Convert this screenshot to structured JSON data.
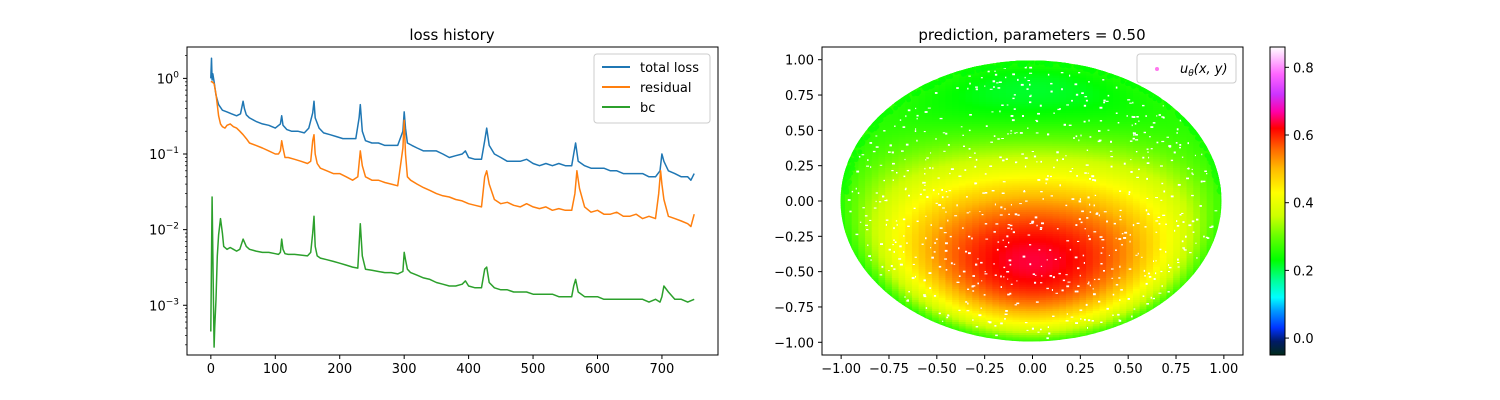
{
  "chart_data": [
    {
      "type": "line",
      "title": "loss history",
      "xlabel": "",
      "ylabel": "",
      "yscale": "log",
      "xlim": [
        -37,
        787
      ],
      "ylim": [
        0.00022,
        2.6
      ],
      "x_ticks": [
        0,
        100,
        200,
        300,
        400,
        500,
        600,
        700
      ],
      "y_ticks": [
        0.001,
        0.01,
        0.1,
        1
      ],
      "y_tick_labels": [
        {
          "base": "10",
          "exp": "−3"
        },
        {
          "base": "10",
          "exp": "−2"
        },
        {
          "base": "10",
          "exp": "−1"
        },
        {
          "base": "10",
          "exp": "0"
        }
      ],
      "legend_position": "top-right",
      "grid": false,
      "series": [
        {
          "name": "total loss",
          "color": "#1f77b4",
          "x": [
            0,
            1,
            2,
            3,
            5,
            8,
            12,
            18,
            25,
            32,
            40,
            46,
            50,
            52,
            55,
            60,
            70,
            80,
            90,
            100,
            108,
            110,
            112,
            118,
            125,
            135,
            145,
            152,
            158,
            160,
            162,
            168,
            175,
            185,
            195,
            205,
            215,
            225,
            230,
            232,
            235,
            240,
            250,
            260,
            270,
            280,
            290,
            298,
            300,
            302,
            305,
            312,
            320,
            330,
            340,
            350,
            360,
            370,
            380,
            390,
            395,
            400,
            410,
            420,
            425,
            428,
            432,
            440,
            450,
            460,
            470,
            480,
            490,
            500,
            510,
            520,
            530,
            540,
            550,
            560,
            563,
            566,
            570,
            580,
            590,
            600,
            610,
            620,
            630,
            640,
            650,
            660,
            670,
            680,
            690,
            697,
            700,
            703,
            710,
            720,
            730,
            740,
            745,
            750
          ],
          "y": [
            1.0,
            1.85,
            0.95,
            1.15,
            0.9,
            0.6,
            0.45,
            0.38,
            0.36,
            0.34,
            0.32,
            0.34,
            0.5,
            0.4,
            0.33,
            0.3,
            0.27,
            0.25,
            0.24,
            0.22,
            0.25,
            0.32,
            0.24,
            0.21,
            0.2,
            0.2,
            0.19,
            0.22,
            0.35,
            0.5,
            0.3,
            0.22,
            0.19,
            0.18,
            0.17,
            0.16,
            0.16,
            0.16,
            0.3,
            0.45,
            0.2,
            0.15,
            0.14,
            0.14,
            0.13,
            0.13,
            0.13,
            0.2,
            0.36,
            0.22,
            0.14,
            0.13,
            0.12,
            0.11,
            0.11,
            0.11,
            0.1,
            0.09,
            0.095,
            0.1,
            0.11,
            0.09,
            0.085,
            0.085,
            0.15,
            0.22,
            0.13,
            0.1,
            0.09,
            0.08,
            0.08,
            0.08,
            0.085,
            0.075,
            0.07,
            0.075,
            0.07,
            0.075,
            0.07,
            0.07,
            0.1,
            0.14,
            0.08,
            0.07,
            0.065,
            0.065,
            0.065,
            0.06,
            0.06,
            0.055,
            0.055,
            0.055,
            0.055,
            0.05,
            0.05,
            0.06,
            0.1,
            0.08,
            0.06,
            0.055,
            0.05,
            0.05,
            0.045,
            0.055
          ]
        },
        {
          "name": "residual",
          "color": "#ff7f0e",
          "x": [
            0,
            2,
            5,
            8,
            12,
            15,
            18,
            22,
            25,
            30,
            35,
            40,
            45,
            50,
            55,
            60,
            70,
            80,
            90,
            100,
            105,
            108,
            110,
            112,
            115,
            120,
            130,
            140,
            150,
            155,
            158,
            160,
            162,
            165,
            170,
            180,
            190,
            200,
            210,
            220,
            228,
            232,
            235,
            240,
            250,
            260,
            270,
            280,
            290,
            298,
            300,
            302,
            305,
            310,
            320,
            330,
            340,
            350,
            360,
            370,
            380,
            390,
            400,
            410,
            420,
            425,
            428,
            432,
            440,
            450,
            460,
            470,
            480,
            490,
            500,
            510,
            520,
            530,
            540,
            550,
            560,
            565,
            568,
            572,
            580,
            590,
            600,
            610,
            620,
            630,
            640,
            650,
            660,
            670,
            680,
            690,
            695,
            698,
            700,
            703,
            710,
            720,
            730,
            740,
            745,
            750
          ],
          "y": [
            0.9,
            0.9,
            0.85,
            0.62,
            0.32,
            0.25,
            0.23,
            0.22,
            0.24,
            0.25,
            0.23,
            0.22,
            0.2,
            0.18,
            0.16,
            0.14,
            0.13,
            0.12,
            0.11,
            0.1,
            0.1,
            0.11,
            0.15,
            0.12,
            0.09,
            0.09,
            0.085,
            0.08,
            0.075,
            0.08,
            0.15,
            0.18,
            0.1,
            0.075,
            0.065,
            0.06,
            0.055,
            0.055,
            0.05,
            0.045,
            0.05,
            0.11,
            0.07,
            0.05,
            0.045,
            0.045,
            0.042,
            0.04,
            0.038,
            0.12,
            0.28,
            0.1,
            0.05,
            0.045,
            0.04,
            0.036,
            0.033,
            0.03,
            0.028,
            0.027,
            0.025,
            0.024,
            0.022,
            0.021,
            0.02,
            0.05,
            0.06,
            0.04,
            0.025,
            0.022,
            0.023,
            0.021,
            0.02,
            0.022,
            0.02,
            0.019,
            0.02,
            0.018,
            0.019,
            0.018,
            0.018,
            0.03,
            0.06,
            0.035,
            0.02,
            0.017,
            0.018,
            0.016,
            0.016,
            0.017,
            0.015,
            0.015,
            0.016,
            0.014,
            0.015,
            0.014,
            0.03,
            0.06,
            0.04,
            0.025,
            0.015,
            0.014,
            0.013,
            0.012,
            0.011,
            0.016
          ]
        },
        {
          "name": "bc",
          "color": "#2ca02c",
          "x": [
            0,
            2,
            4,
            5,
            6,
            8,
            10,
            12,
            15,
            18,
            20,
            25,
            30,
            35,
            40,
            45,
            50,
            55,
            60,
            70,
            80,
            90,
            100,
            105,
            108,
            110,
            112,
            115,
            120,
            130,
            140,
            150,
            155,
            158,
            160,
            162,
            165,
            170,
            180,
            190,
            200,
            210,
            220,
            228,
            232,
            235,
            240,
            250,
            260,
            270,
            280,
            290,
            298,
            300,
            302,
            305,
            310,
            320,
            330,
            340,
            350,
            360,
            370,
            380,
            390,
            395,
            400,
            410,
            420,
            425,
            428,
            432,
            440,
            450,
            460,
            470,
            480,
            490,
            500,
            510,
            520,
            530,
            540,
            550,
            560,
            563,
            566,
            570,
            580,
            590,
            600,
            610,
            620,
            630,
            640,
            650,
            660,
            670,
            680,
            690,
            697,
            700,
            703,
            710,
            720,
            730,
            740,
            750
          ],
          "y": [
            0.00045,
            0.027,
            0.0013,
            0.00028,
            0.0005,
            0.0012,
            0.0045,
            0.0085,
            0.014,
            0.009,
            0.006,
            0.0055,
            0.0058,
            0.0055,
            0.0052,
            0.0055,
            0.0075,
            0.006,
            0.0055,
            0.0052,
            0.005,
            0.005,
            0.0048,
            0.0047,
            0.005,
            0.0075,
            0.0055,
            0.0048,
            0.0047,
            0.0047,
            0.0046,
            0.0045,
            0.005,
            0.009,
            0.015,
            0.006,
            0.0045,
            0.0042,
            0.004,
            0.0038,
            0.0036,
            0.0034,
            0.0032,
            0.0031,
            0.012,
            0.0045,
            0.003,
            0.0029,
            0.0028,
            0.0027,
            0.0027,
            0.0026,
            0.0028,
            0.005,
            0.004,
            0.003,
            0.0027,
            0.0025,
            0.0023,
            0.0022,
            0.002,
            0.0019,
            0.0018,
            0.0018,
            0.0019,
            0.0021,
            0.0018,
            0.0017,
            0.0017,
            0.003,
            0.0032,
            0.002,
            0.0017,
            0.0016,
            0.0016,
            0.0015,
            0.0015,
            0.0015,
            0.0014,
            0.0014,
            0.0014,
            0.0014,
            0.0013,
            0.0013,
            0.0013,
            0.0018,
            0.0022,
            0.0015,
            0.0013,
            0.0013,
            0.0013,
            0.0012,
            0.0012,
            0.0012,
            0.0012,
            0.0012,
            0.0012,
            0.0012,
            0.0011,
            0.0012,
            0.0011,
            0.0013,
            0.0018,
            0.0015,
            0.0012,
            0.0012,
            0.0011,
            0.0012
          ]
        }
      ]
    },
    {
      "type": "scatter",
      "title": "prediction, parameters = 0.50",
      "xlabel": "",
      "ylabel": "",
      "xlim": [
        -1.1,
        1.1
      ],
      "ylim": [
        -1.09,
        1.09
      ],
      "x_ticks": [
        -1.0,
        -0.75,
        -0.5,
        -0.25,
        0.0,
        0.25,
        0.5,
        0.75,
        1.0
      ],
      "x_tick_labels": [
        "−1.00",
        "−0.75",
        "−0.50",
        "−0.25",
        "0.00",
        "0.25",
        "0.50",
        "0.75",
        "1.00"
      ],
      "y_ticks": [
        -1.0,
        -0.75,
        -0.5,
        -0.25,
        0.0,
        0.25,
        0.5,
        0.75,
        1.0
      ],
      "y_tick_labels": [
        "−1.00",
        "−0.75",
        "−0.50",
        "−0.25",
        "0.00",
        "0.25",
        "0.50",
        "0.75",
        "1.00"
      ],
      "domain": "unit disk",
      "colormap": "gist_ncar",
      "colorbar": {
        "range": [
          -0.05,
          0.86
        ],
        "ticks": [
          0.0,
          0.2,
          0.4,
          0.6,
          0.8
        ],
        "tick_labels": [
          "0.0",
          "0.2",
          "0.4",
          "0.6",
          "0.8"
        ]
      },
      "colormap_stops": [
        {
          "v": -0.05,
          "color": "#002b1a"
        },
        {
          "v": -0.01,
          "color": "#001a66"
        },
        {
          "v": 0.03,
          "color": "#0033ff"
        },
        {
          "v": 0.08,
          "color": "#0099ff"
        },
        {
          "v": 0.12,
          "color": "#00ffff"
        },
        {
          "v": 0.17,
          "color": "#00ff99"
        },
        {
          "v": 0.23,
          "color": "#00ff00"
        },
        {
          "v": 0.3,
          "color": "#66ff00"
        },
        {
          "v": 0.36,
          "color": "#ccff00"
        },
        {
          "v": 0.43,
          "color": "#ffff00"
        },
        {
          "v": 0.5,
          "color": "#ffbb00"
        },
        {
          "v": 0.56,
          "color": "#ff6600"
        },
        {
          "v": 0.62,
          "color": "#ff0000"
        },
        {
          "v": 0.67,
          "color": "#ff00aa"
        },
        {
          "v": 0.72,
          "color": "#cc33ff"
        },
        {
          "v": 0.78,
          "color": "#ff66ff"
        },
        {
          "v": 0.86,
          "color": "#ffffff"
        }
      ],
      "legend_position": "top-right",
      "grid": false,
      "series": [
        {
          "name_base": "u",
          "name_sub": "θ",
          "name_args": "(x, y)",
          "marker_color": "#ff77ee"
        }
      ]
    }
  ]
}
